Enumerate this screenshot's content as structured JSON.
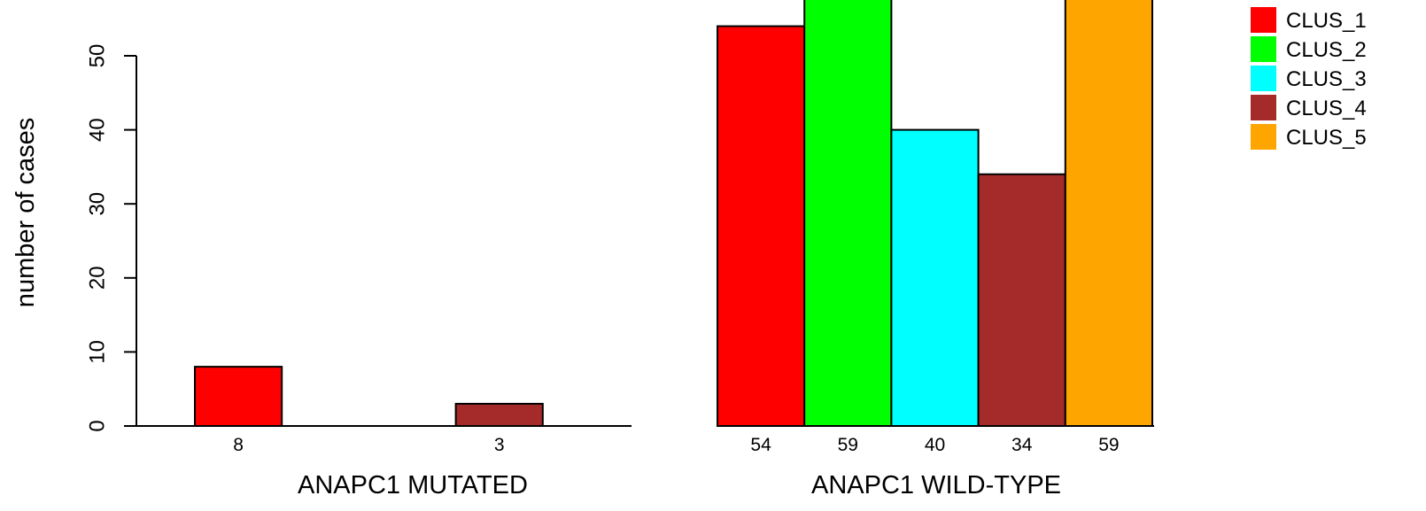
{
  "chart_data": {
    "type": "bar",
    "ylabel": "number of cases",
    "yticks": [
      0,
      10,
      20,
      30,
      40,
      50
    ],
    "ylim": [
      0,
      60
    ],
    "series": [
      {
        "name": "CLUS_1",
        "color": "#ff0000"
      },
      {
        "name": "CLUS_2",
        "color": "#00ff00"
      },
      {
        "name": "CLUS_3",
        "color": "#00ffff"
      },
      {
        "name": "CLUS_4",
        "color": "#a52a2a"
      },
      {
        "name": "CLUS_5",
        "color": "#ffa500"
      }
    ],
    "groups": [
      {
        "label": "ANAPC1 MUTATED",
        "values": [
          8,
          0,
          0,
          3,
          0
        ],
        "value_labels": [
          "8",
          "",
          "",
          "3",
          ""
        ]
      },
      {
        "label": "ANAPC1 WILD-TYPE",
        "values": [
          54,
          59,
          40,
          34,
          59
        ],
        "value_labels": [
          "54",
          "59",
          "40",
          "34",
          "59"
        ]
      }
    ],
    "legend_position": "top-right"
  }
}
